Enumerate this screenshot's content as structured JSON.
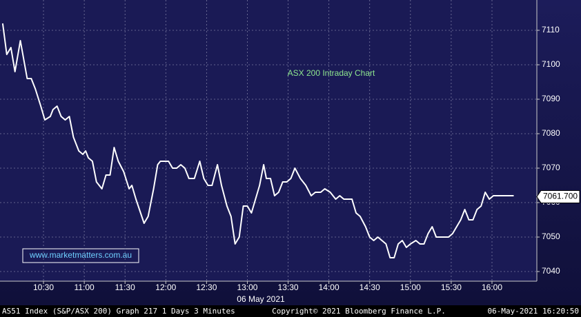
{
  "chart_data": {
    "type": "line",
    "title": "ASX 200 Intraday Chart",
    "watermark": "www.marketmatters.com.au",
    "x_label": "06 May 2021",
    "footer_left": "AS51 Index (S&P/ASX 200) Graph 217 1 Days 3 Minutes",
    "footer_center": "Copyright© 2021 Bloomberg Finance L.P.",
    "footer_right": "06-May-2021 16:20:50",
    "color": "#ffffff",
    "grid": true,
    "x": [
      "10:00",
      "10:03",
      "10:06",
      "10:09",
      "10:13",
      "10:18",
      "10:21",
      "10:24",
      "10:28",
      "10:31",
      "10:35",
      "10:37",
      "10:40",
      "10:43",
      "10:46",
      "10:49",
      "10:52",
      "10:56",
      "10:59",
      "11:01",
      "11:03",
      "11:06",
      "11:09",
      "11:13",
      "11:16",
      "11:19",
      "11:22",
      "11:25",
      "11:29",
      "11:33",
      "11:35",
      "11:38",
      "11:44",
      "11:47",
      "11:51",
      "11:54",
      "11:56",
      "11:59",
      "12:02",
      "12:05",
      "12:08",
      "12:11",
      "12:14",
      "12:17",
      "12:21",
      "12:25",
      "12:28",
      "12:31",
      "12:34",
      "12:38",
      "12:41",
      "12:45",
      "12:48",
      "12:51",
      "12:54",
      "12:57",
      "13:00",
      "13:03",
      "13:06",
      "13:09",
      "13:12",
      "13:14",
      "13:17",
      "13:20",
      "13:23",
      "13:26",
      "13:29",
      "13:32",
      "13:35",
      "13:39",
      "13:43",
      "13:47",
      "13:50",
      "13:54",
      "13:57",
      "14:01",
      "14:05",
      "14:08",
      "14:11",
      "14:14",
      "14:17",
      "14:20",
      "14:23",
      "14:27",
      "14:30",
      "14:33",
      "14:36",
      "14:39",
      "14:42",
      "14:45",
      "14:48",
      "14:51",
      "14:54",
      "14:57",
      "15:00",
      "15:04",
      "15:07",
      "15:10",
      "15:13",
      "15:16",
      "15:19",
      "15:22",
      "15:25",
      "15:28",
      "15:31",
      "15:34",
      "15:37",
      "15:40",
      "15:43",
      "15:46",
      "15:49",
      "15:52",
      "15:55",
      "15:58",
      "16:01",
      "16:04",
      "16:07",
      "16:10",
      "16:16"
    ],
    "values": [
      7112,
      7103,
      7105,
      7098,
      7107,
      7096,
      7096,
      7093,
      7088,
      7084,
      7085,
      7087,
      7088,
      7085,
      7084,
      7085,
      7079,
      7075,
      7074,
      7075,
      7073,
      7072,
      7066,
      7064,
      7068,
      7068,
      7076,
      7072,
      7069,
      7064,
      7065,
      7061,
      7054,
      7056,
      7064,
      7071,
      7072,
      7072,
      7072,
      7070,
      7070,
      7071,
      7070,
      7067,
      7067,
      7072,
      7067,
      7065,
      7065,
      7071,
      7065,
      7059,
      7056,
      7048,
      7050,
      7059,
      7059,
      7057,
      7061,
      7065,
      7071,
      7067,
      7067,
      7062,
      7063,
      7066,
      7066,
      7067,
      7070,
      7067,
      7065,
      7062,
      7063,
      7063,
      7064,
      7063,
      7061,
      7062,
      7061,
      7061,
      7061,
      7057,
      7056,
      7053,
      7050,
      7049,
      7050,
      7049,
      7048,
      7044,
      7044,
      7048,
      7049,
      7047,
      7048,
      7049,
      7048,
      7048,
      7051,
      7053,
      7050,
      7050,
      7050,
      7050,
      7051,
      7053,
      7055,
      7058,
      7055,
      7055,
      7058,
      7059,
      7063,
      7061,
      7062,
      7062,
      7062,
      7062,
      7062
    ],
    "xlim": [
      "09:58",
      "16:33"
    ],
    "xticks": [
      "10:30",
      "11:00",
      "11:30",
      "12:00",
      "12:30",
      "13:00",
      "13:30",
      "14:00",
      "14:30",
      "15:00",
      "15:30",
      "16:00"
    ],
    "ylim": [
      7037.2,
      7118.8
    ],
    "yticks": [
      7040,
      7050,
      7060,
      7070,
      7080,
      7090,
      7100,
      7110
    ],
    "last_price": {
      "value": 7061.7,
      "label": "7061.700"
    }
  }
}
